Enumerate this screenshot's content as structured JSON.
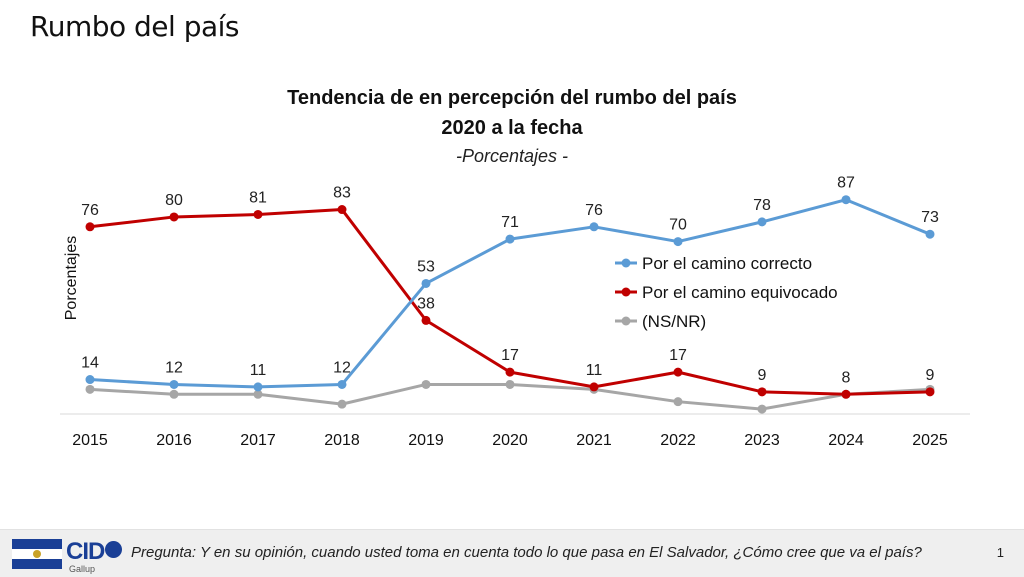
{
  "slide": {
    "title": "Rumbo del país"
  },
  "colors": {
    "correcto": "#5b9bd5",
    "equivocado": "#c00000",
    "nsnr": "#a6a6a6"
  },
  "chart_data": {
    "type": "line",
    "title": "Tendencia de en percepción del rumbo del país",
    "subtitle": "2020 a la fecha",
    "note": "-Porcentajes -",
    "ylabel": "Porcentajes",
    "xlabel": "",
    "ylim": [
      0,
      95
    ],
    "grid": false,
    "legend_position": "right",
    "categories": [
      "2015",
      "2016",
      "2017",
      "2018",
      "2019",
      "2020",
      "2021",
      "2022",
      "2023",
      "2024",
      "2025"
    ],
    "series": [
      {
        "name": "Por el camino correcto",
        "color": "#5b9bd5",
        "show_labels": true,
        "values": [
          14,
          12,
          11,
          12,
          53,
          71,
          76,
          70,
          78,
          87,
          73
        ]
      },
      {
        "name": "Por el camino equivocado",
        "color": "#c00000",
        "show_labels": true,
        "values": [
          76,
          80,
          81,
          83,
          38,
          17,
          11,
          17,
          9,
          8,
          9
        ]
      },
      {
        "name": "(NS/NR)",
        "color": "#a6a6a6",
        "show_labels": false,
        "values": [
          10,
          8,
          8,
          4,
          12,
          12,
          10,
          5,
          2,
          8,
          10
        ]
      }
    ]
  },
  "footer": {
    "logo_text": "CID",
    "logo_sub": "Gallup",
    "question": "Pregunta: Y en su opinión, cuando usted toma en cuenta todo lo que pasa en El Salvador, ¿Cómo cree que va el país?",
    "page_number": "1"
  }
}
